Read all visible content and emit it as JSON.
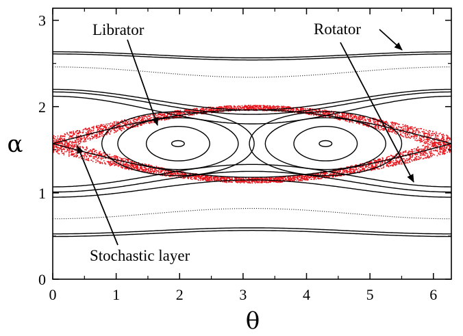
{
  "chart_data": {
    "type": "scatter",
    "title": "",
    "xlabel": "θ",
    "ylabel": "α",
    "xlim": [
      0,
      6.283
    ],
    "ylim": [
      0,
      3.14
    ],
    "x_ticks": [
      "0",
      "1",
      "2",
      "3",
      "4",
      "5",
      "6"
    ],
    "y_ticks": [
      "0",
      "1",
      "2",
      "3"
    ],
    "grid": false,
    "separatrix": {
      "center_alpha": 1.571,
      "half_width": 0.42,
      "x_points": [
        0,
        3.1416,
        6.283
      ],
      "o_points": [
        1.975,
        4.3
      ]
    },
    "librator_orbits": [
      {
        "rx": 0.1,
        "ry": 0.035
      },
      {
        "rx": 0.5,
        "ry": 0.2
      },
      {
        "rx": 0.95,
        "ry": 0.3
      },
      {
        "rx": 1.2,
        "ry": 0.37
      }
    ],
    "rotator_orbits_upper": [
      {
        "alpha": 2.6,
        "amp": 0.035
      },
      {
        "alpha": 2.575,
        "amp": 0.035
      },
      {
        "alpha": 2.4,
        "amp": 0.06
      },
      {
        "alpha": 2.08,
        "amp": 0.12
      },
      {
        "alpha": 2.04,
        "amp": 0.13
      },
      {
        "alpha": 1.96,
        "amp": 0.16
      }
    ],
    "rotator_orbits_lower": [
      {
        "alpha": 1.2,
        "amp": 0.13
      },
      {
        "alpha": 1.13,
        "amp": 0.12
      },
      {
        "alpha": 1.05,
        "amp": 0.1
      },
      {
        "alpha": 0.76,
        "amp": 0.06
      },
      {
        "alpha": 0.56,
        "amp": 0.035
      },
      {
        "alpha": 0.53,
        "amp": 0.035
      }
    ],
    "stochastic_layer_color": "#e8141c",
    "orbit_color": "#000000",
    "annotations": [
      {
        "text": "Librator",
        "arrow_to": [
          1.65,
          1.86
        ]
      },
      {
        "text": "Rotator",
        "arrow_to": [
          5.6,
          2.62
        ]
      },
      {
        "text": "Rotator",
        "arrow_to": [
          5.7,
          1.13
        ]
      },
      {
        "text": "Stochastic layer",
        "arrow_to": [
          0.35,
          1.55
        ]
      }
    ]
  }
}
